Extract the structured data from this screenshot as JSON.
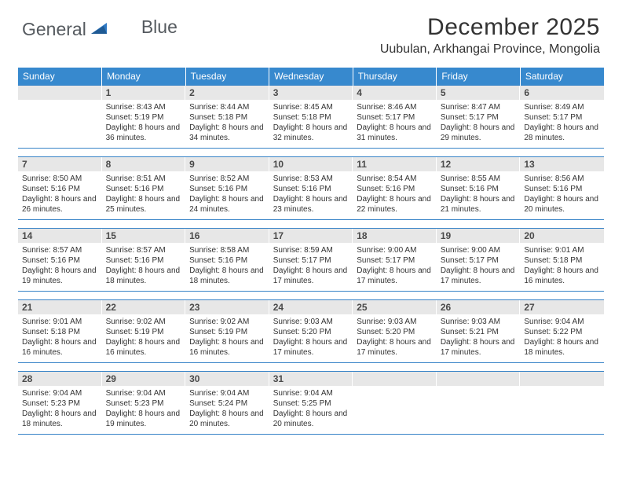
{
  "logo": {
    "text1": "General",
    "text2": "Blue"
  },
  "title": "December 2025",
  "location": "Uubulan, Arkhangai Province, Mongolia",
  "colors": {
    "header_bg": "#3789ce",
    "header_text": "#ffffff",
    "daynum_bg": "#e7e7e7",
    "rule": "#3783c7",
    "logo_blue": "#2f79c4",
    "body_text": "#333333"
  },
  "typography": {
    "title_fontsize": 30,
    "location_fontsize": 16,
    "weekday_fontsize": 12,
    "daynum_fontsize": 12,
    "body_fontsize": 10
  },
  "weekdays": [
    "Sunday",
    "Monday",
    "Tuesday",
    "Wednesday",
    "Thursday",
    "Friday",
    "Saturday"
  ],
  "grid": [
    [
      null,
      {
        "n": "1",
        "sr": "8:43 AM",
        "ss": "5:19 PM",
        "dl": "8 hours and 36 minutes."
      },
      {
        "n": "2",
        "sr": "8:44 AM",
        "ss": "5:18 PM",
        "dl": "8 hours and 34 minutes."
      },
      {
        "n": "3",
        "sr": "8:45 AM",
        "ss": "5:18 PM",
        "dl": "8 hours and 32 minutes."
      },
      {
        "n": "4",
        "sr": "8:46 AM",
        "ss": "5:17 PM",
        "dl": "8 hours and 31 minutes."
      },
      {
        "n": "5",
        "sr": "8:47 AM",
        "ss": "5:17 PM",
        "dl": "8 hours and 29 minutes."
      },
      {
        "n": "6",
        "sr": "8:49 AM",
        "ss": "5:17 PM",
        "dl": "8 hours and 28 minutes."
      }
    ],
    [
      {
        "n": "7",
        "sr": "8:50 AM",
        "ss": "5:16 PM",
        "dl": "8 hours and 26 minutes."
      },
      {
        "n": "8",
        "sr": "8:51 AM",
        "ss": "5:16 PM",
        "dl": "8 hours and 25 minutes."
      },
      {
        "n": "9",
        "sr": "8:52 AM",
        "ss": "5:16 PM",
        "dl": "8 hours and 24 minutes."
      },
      {
        "n": "10",
        "sr": "8:53 AM",
        "ss": "5:16 PM",
        "dl": "8 hours and 23 minutes."
      },
      {
        "n": "11",
        "sr": "8:54 AM",
        "ss": "5:16 PM",
        "dl": "8 hours and 22 minutes."
      },
      {
        "n": "12",
        "sr": "8:55 AM",
        "ss": "5:16 PM",
        "dl": "8 hours and 21 minutes."
      },
      {
        "n": "13",
        "sr": "8:56 AM",
        "ss": "5:16 PM",
        "dl": "8 hours and 20 minutes."
      }
    ],
    [
      {
        "n": "14",
        "sr": "8:57 AM",
        "ss": "5:16 PM",
        "dl": "8 hours and 19 minutes."
      },
      {
        "n": "15",
        "sr": "8:57 AM",
        "ss": "5:16 PM",
        "dl": "8 hours and 18 minutes."
      },
      {
        "n": "16",
        "sr": "8:58 AM",
        "ss": "5:16 PM",
        "dl": "8 hours and 18 minutes."
      },
      {
        "n": "17",
        "sr": "8:59 AM",
        "ss": "5:17 PM",
        "dl": "8 hours and 17 minutes."
      },
      {
        "n": "18",
        "sr": "9:00 AM",
        "ss": "5:17 PM",
        "dl": "8 hours and 17 minutes."
      },
      {
        "n": "19",
        "sr": "9:00 AM",
        "ss": "5:17 PM",
        "dl": "8 hours and 17 minutes."
      },
      {
        "n": "20",
        "sr": "9:01 AM",
        "ss": "5:18 PM",
        "dl": "8 hours and 16 minutes."
      }
    ],
    [
      {
        "n": "21",
        "sr": "9:01 AM",
        "ss": "5:18 PM",
        "dl": "8 hours and 16 minutes."
      },
      {
        "n": "22",
        "sr": "9:02 AM",
        "ss": "5:19 PM",
        "dl": "8 hours and 16 minutes."
      },
      {
        "n": "23",
        "sr": "9:02 AM",
        "ss": "5:19 PM",
        "dl": "8 hours and 16 minutes."
      },
      {
        "n": "24",
        "sr": "9:03 AM",
        "ss": "5:20 PM",
        "dl": "8 hours and 17 minutes."
      },
      {
        "n": "25",
        "sr": "9:03 AM",
        "ss": "5:20 PM",
        "dl": "8 hours and 17 minutes."
      },
      {
        "n": "26",
        "sr": "9:03 AM",
        "ss": "5:21 PM",
        "dl": "8 hours and 17 minutes."
      },
      {
        "n": "27",
        "sr": "9:04 AM",
        "ss": "5:22 PM",
        "dl": "8 hours and 18 minutes."
      }
    ],
    [
      {
        "n": "28",
        "sr": "9:04 AM",
        "ss": "5:23 PM",
        "dl": "8 hours and 18 minutes."
      },
      {
        "n": "29",
        "sr": "9:04 AM",
        "ss": "5:23 PM",
        "dl": "8 hours and 19 minutes."
      },
      {
        "n": "30",
        "sr": "9:04 AM",
        "ss": "5:24 PM",
        "dl": "8 hours and 20 minutes."
      },
      {
        "n": "31",
        "sr": "9:04 AM",
        "ss": "5:25 PM",
        "dl": "8 hours and 20 minutes."
      },
      null,
      null,
      null
    ]
  ],
  "labels": {
    "sunrise": "Sunrise:",
    "sunset": "Sunset:",
    "daylight": "Daylight:"
  }
}
